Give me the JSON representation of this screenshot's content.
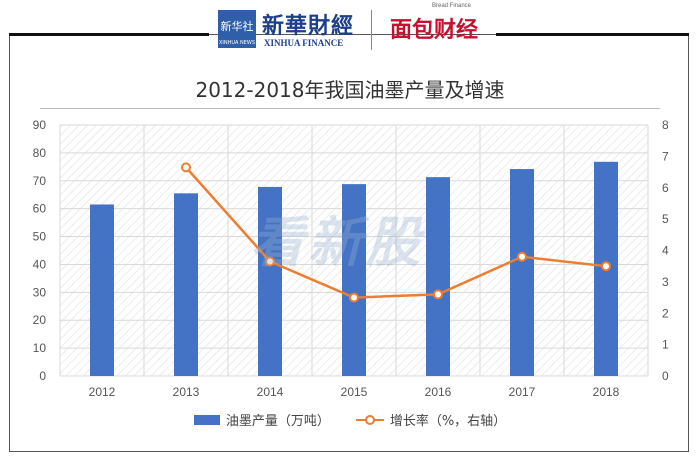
{
  "header": {
    "logo1_text": "新华社",
    "logo1_sub": "XINHUA NEWS",
    "logo2_text": "新華財經",
    "logo2_sub": "XINHUA FINANCE",
    "logo3_text": "面包财经",
    "logo3_sub": "Bread Finance"
  },
  "watermark": "看新股",
  "colors": {
    "bar": "#4472c4",
    "line": "#ed7d31",
    "grid": "#d9d9d9"
  },
  "chart_data": {
    "type": "bar",
    "title": "2012-2018年我国油墨产量及增速",
    "categories": [
      "2012",
      "2013",
      "2014",
      "2015",
      "2016",
      "2017",
      "2018"
    ],
    "series": [
      {
        "name": "油墨产量（万吨）",
        "type": "bar",
        "axis": "left",
        "values": [
          61.5,
          65.5,
          67.8,
          68.8,
          71.3,
          74.2,
          76.8
        ]
      },
      {
        "name": "增长率（%，右轴）",
        "type": "line",
        "axis": "right",
        "values": [
          null,
          6.65,
          3.65,
          2.5,
          2.6,
          3.8,
          3.5
        ]
      }
    ],
    "ylim_left": [
      0,
      90
    ],
    "ylim_right": [
      0,
      8
    ],
    "yticks_left": [
      "0",
      "10",
      "20",
      "30",
      "40",
      "50",
      "60",
      "70",
      "80",
      "90"
    ],
    "yticks_right": [
      "0",
      "1",
      "2",
      "3",
      "4",
      "5",
      "6",
      "7",
      "8"
    ],
    "grid": true,
    "legend": "bottom"
  }
}
